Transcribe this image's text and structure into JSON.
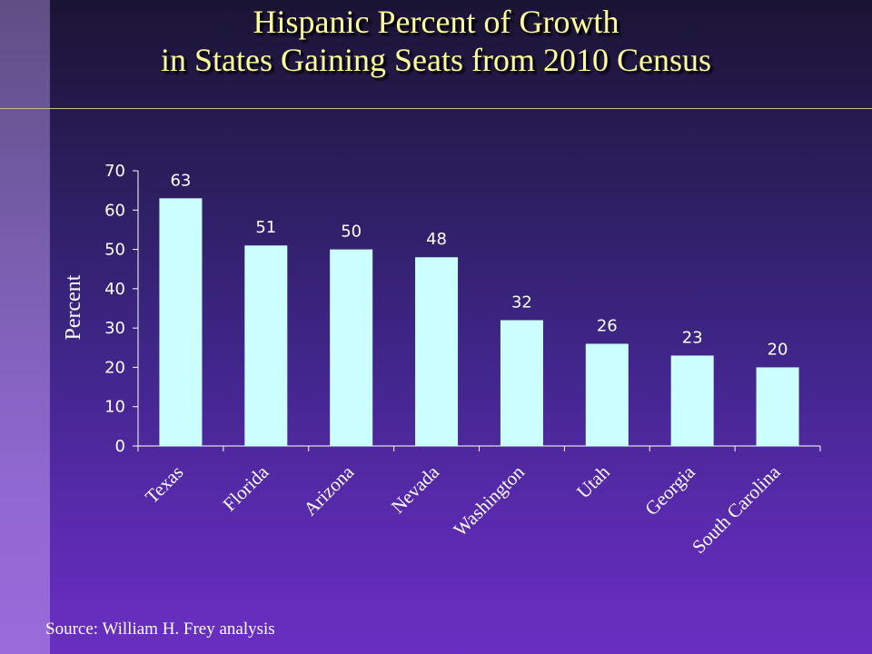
{
  "title_lines": [
    "Hispanic Percent of Growth",
    "in States Gaining Seats from 2010 Census"
  ],
  "source": "Source: William H. Frey analysis",
  "colors": {
    "bar": "#ccffff",
    "axis": "#ffffff",
    "title": "#ffff99"
  },
  "chart_data": {
    "type": "bar",
    "title": "Hispanic Percent of Growth in States Gaining Seats from 2010 Census",
    "categories": [
      "Texas",
      "Florida",
      "Arizona",
      "Nevada",
      "Washington",
      "Utah",
      "Georgia",
      "South Carolina"
    ],
    "values": [
      63,
      51,
      50,
      48,
      32,
      26,
      23,
      20
    ],
    "xlabel": "",
    "ylabel": "Percent",
    "ylim": [
      0,
      70
    ],
    "yticks": [
      0,
      10,
      20,
      30,
      40,
      50,
      60,
      70
    ],
    "grid": false,
    "legend": "none",
    "data_labels": true
  }
}
